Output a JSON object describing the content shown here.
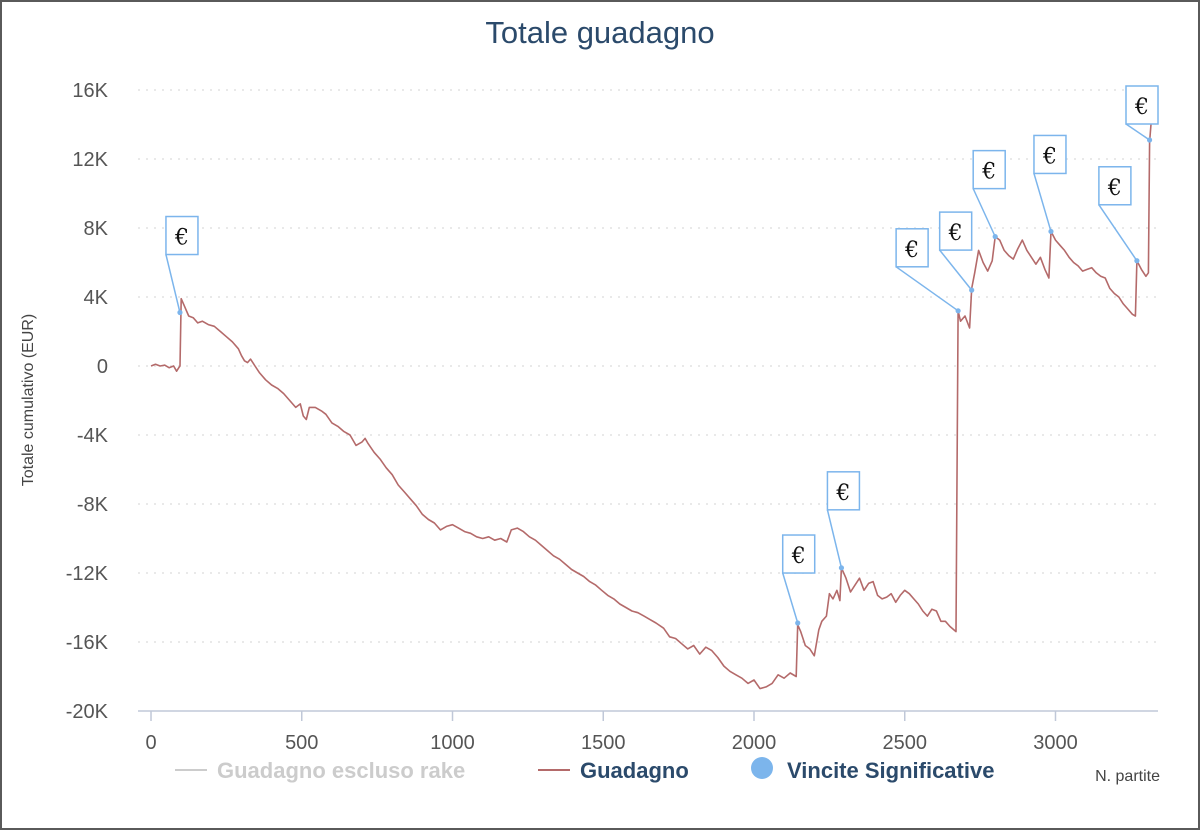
{
  "chart_data": {
    "type": "line",
    "title": "Totale guadagno",
    "xlabel": "N. partite",
    "ylabel": "Totale cumulativo (EUR)",
    "xlim": [
      -10,
      3340
    ],
    "ylim": [
      -20000,
      16000
    ],
    "x_ticks": [
      {
        "value": 0,
        "label": "0"
      },
      {
        "value": 500,
        "label": "500"
      },
      {
        "value": 1000,
        "label": "1000"
      },
      {
        "value": 1500,
        "label": "1500"
      },
      {
        "value": 2000,
        "label": "2000"
      },
      {
        "value": 2500,
        "label": "2500"
      },
      {
        "value": 3000,
        "label": "3000"
      }
    ],
    "y_ticks": [
      {
        "value": 16000,
        "label": "16K"
      },
      {
        "value": 12000,
        "label": "12K"
      },
      {
        "value": 8000,
        "label": "8K"
      },
      {
        "value": 4000,
        "label": "4K"
      },
      {
        "value": 0,
        "label": "0"
      },
      {
        "value": -4000,
        "label": "-4K"
      },
      {
        "value": -8000,
        "label": "-8K"
      },
      {
        "value": -12000,
        "label": "-12K"
      },
      {
        "value": -16000,
        "label": "-16K"
      },
      {
        "value": -20000,
        "label": "-20K"
      }
    ],
    "grid": "horizontal-dotted",
    "legend_position": "bottom",
    "series": [
      {
        "name": "Guadagno escluso rake",
        "color": "#cccccc",
        "visible": false,
        "points": []
      },
      {
        "name": "Guadagno",
        "color": "#b46a6a",
        "points": [
          [
            0,
            0
          ],
          [
            15,
            100
          ],
          [
            30,
            0
          ],
          [
            45,
            50
          ],
          [
            60,
            -100
          ],
          [
            75,
            0
          ],
          [
            85,
            -300
          ],
          [
            92,
            -100
          ],
          [
            96,
            0
          ],
          [
            100,
            3900
          ],
          [
            110,
            3500
          ],
          [
            125,
            2900
          ],
          [
            140,
            2800
          ],
          [
            155,
            2500
          ],
          [
            170,
            2600
          ],
          [
            190,
            2400
          ],
          [
            210,
            2300
          ],
          [
            230,
            2000
          ],
          [
            250,
            1700
          ],
          [
            270,
            1400
          ],
          [
            290,
            1000
          ],
          [
            300,
            600
          ],
          [
            310,
            300
          ],
          [
            320,
            200
          ],
          [
            330,
            400
          ],
          [
            345,
            0
          ],
          [
            360,
            -400
          ],
          [
            380,
            -800
          ],
          [
            400,
            -1100
          ],
          [
            420,
            -1300
          ],
          [
            440,
            -1600
          ],
          [
            460,
            -2000
          ],
          [
            480,
            -2400
          ],
          [
            495,
            -2200
          ],
          [
            505,
            -2900
          ],
          [
            515,
            -3100
          ],
          [
            525,
            -2400
          ],
          [
            545,
            -2400
          ],
          [
            565,
            -2600
          ],
          [
            580,
            -2800
          ],
          [
            600,
            -3300
          ],
          [
            620,
            -3500
          ],
          [
            640,
            -3800
          ],
          [
            660,
            -4000
          ],
          [
            680,
            -4600
          ],
          [
            700,
            -4400
          ],
          [
            710,
            -4200
          ],
          [
            720,
            -4500
          ],
          [
            740,
            -5000
          ],
          [
            760,
            -5400
          ],
          [
            780,
            -5900
          ],
          [
            800,
            -6300
          ],
          [
            820,
            -6900
          ],
          [
            840,
            -7300
          ],
          [
            860,
            -7700
          ],
          [
            880,
            -8100
          ],
          [
            900,
            -8600
          ],
          [
            920,
            -8900
          ],
          [
            940,
            -9100
          ],
          [
            960,
            -9500
          ],
          [
            980,
            -9300
          ],
          [
            1000,
            -9200
          ],
          [
            1020,
            -9400
          ],
          [
            1040,
            -9600
          ],
          [
            1060,
            -9700
          ],
          [
            1080,
            -9900
          ],
          [
            1100,
            -10000
          ],
          [
            1120,
            -9900
          ],
          [
            1140,
            -10100
          ],
          [
            1160,
            -10000
          ],
          [
            1180,
            -10200
          ],
          [
            1195,
            -9500
          ],
          [
            1215,
            -9400
          ],
          [
            1235,
            -9600
          ],
          [
            1255,
            -9900
          ],
          [
            1275,
            -10100
          ],
          [
            1295,
            -10400
          ],
          [
            1315,
            -10700
          ],
          [
            1335,
            -11000
          ],
          [
            1355,
            -11200
          ],
          [
            1375,
            -11500
          ],
          [
            1395,
            -11800
          ],
          [
            1415,
            -12000
          ],
          [
            1435,
            -12200
          ],
          [
            1455,
            -12500
          ],
          [
            1475,
            -12700
          ],
          [
            1495,
            -13000
          ],
          [
            1515,
            -13300
          ],
          [
            1535,
            -13500
          ],
          [
            1555,
            -13800
          ],
          [
            1575,
            -14000
          ],
          [
            1595,
            -14200
          ],
          [
            1615,
            -14300
          ],
          [
            1635,
            -14500
          ],
          [
            1655,
            -14700
          ],
          [
            1675,
            -14900
          ],
          [
            1700,
            -15200
          ],
          [
            1720,
            -15700
          ],
          [
            1740,
            -15800
          ],
          [
            1760,
            -16100
          ],
          [
            1780,
            -16400
          ],
          [
            1800,
            -16200
          ],
          [
            1820,
            -16700
          ],
          [
            1840,
            -16300
          ],
          [
            1860,
            -16500
          ],
          [
            1880,
            -16900
          ],
          [
            1900,
            -17400
          ],
          [
            1920,
            -17700
          ],
          [
            1940,
            -17900
          ],
          [
            1960,
            -18100
          ],
          [
            1980,
            -18400
          ],
          [
            2000,
            -18200
          ],
          [
            2020,
            -18700
          ],
          [
            2040,
            -18600
          ],
          [
            2060,
            -18400
          ],
          [
            2080,
            -17900
          ],
          [
            2100,
            -18100
          ],
          [
            2120,
            -17800
          ],
          [
            2140,
            -18000
          ],
          [
            2145,
            -15000
          ],
          [
            2155,
            -15400
          ],
          [
            2170,
            -16200
          ],
          [
            2185,
            -16400
          ],
          [
            2200,
            -16800
          ],
          [
            2215,
            -15300
          ],
          [
            2225,
            -14800
          ],
          [
            2240,
            -14500
          ],
          [
            2250,
            -13200
          ],
          [
            2262,
            -13500
          ],
          [
            2275,
            -13000
          ],
          [
            2285,
            -13600
          ],
          [
            2290,
            -11700
          ],
          [
            2305,
            -12300
          ],
          [
            2320,
            -13100
          ],
          [
            2335,
            -12700
          ],
          [
            2350,
            -12300
          ],
          [
            2365,
            -13000
          ],
          [
            2380,
            -12600
          ],
          [
            2395,
            -12500
          ],
          [
            2410,
            -13300
          ],
          [
            2425,
            -13500
          ],
          [
            2440,
            -13400
          ],
          [
            2455,
            -13200
          ],
          [
            2470,
            -13700
          ],
          [
            2485,
            -13300
          ],
          [
            2500,
            -13000
          ],
          [
            2515,
            -13200
          ],
          [
            2530,
            -13500
          ],
          [
            2545,
            -13800
          ],
          [
            2560,
            -14200
          ],
          [
            2575,
            -14500
          ],
          [
            2590,
            -14100
          ],
          [
            2605,
            -14200
          ],
          [
            2620,
            -14800
          ],
          [
            2635,
            -14800
          ],
          [
            2650,
            -15100
          ],
          [
            2670,
            -15400
          ],
          [
            2677,
            3200
          ],
          [
            2685,
            2600
          ],
          [
            2700,
            2900
          ],
          [
            2715,
            2200
          ],
          [
            2722,
            4500
          ],
          [
            2732,
            5400
          ],
          [
            2745,
            6700
          ],
          [
            2760,
            6000
          ],
          [
            2775,
            5500
          ],
          [
            2790,
            6100
          ],
          [
            2800,
            7500
          ],
          [
            2815,
            7300
          ],
          [
            2830,
            6700
          ],
          [
            2845,
            6400
          ],
          [
            2860,
            6200
          ],
          [
            2875,
            6800
          ],
          [
            2890,
            7300
          ],
          [
            2905,
            6700
          ],
          [
            2920,
            6300
          ],
          [
            2935,
            5900
          ],
          [
            2950,
            6300
          ],
          [
            2965,
            5600
          ],
          [
            2978,
            5100
          ],
          [
            2985,
            7800
          ],
          [
            3000,
            7300
          ],
          [
            3015,
            7000
          ],
          [
            3030,
            6700
          ],
          [
            3045,
            6300
          ],
          [
            3060,
            6000
          ],
          [
            3075,
            5800
          ],
          [
            3090,
            5500
          ],
          [
            3105,
            5600
          ],
          [
            3120,
            5700
          ],
          [
            3135,
            5400
          ],
          [
            3150,
            5200
          ],
          [
            3165,
            5100
          ],
          [
            3180,
            4500
          ],
          [
            3195,
            4200
          ],
          [
            3210,
            4000
          ],
          [
            3225,
            3600
          ],
          [
            3240,
            3300
          ],
          [
            3255,
            3000
          ],
          [
            3265,
            2900
          ],
          [
            3270,
            6100
          ],
          [
            3285,
            5600
          ],
          [
            3300,
            5200
          ],
          [
            3308,
            5400
          ],
          [
            3312,
            13000
          ],
          [
            3318,
            14300
          ]
        ]
      },
      {
        "name": "Vincite Significative",
        "color": "#7cb5ec",
        "type": "flags",
        "points": [
          {
            "x": 96,
            "y": 3100,
            "label": "€"
          },
          {
            "x": 2145,
            "y": -14900,
            "label": "€"
          },
          {
            "x": 2290,
            "y": -11700,
            "label": "€"
          },
          {
            "x": 2677,
            "y": 3200,
            "label": "€"
          },
          {
            "x": 2722,
            "y": 4400,
            "label": "€"
          },
          {
            "x": 2800,
            "y": 7500,
            "label": "€"
          },
          {
            "x": 2985,
            "y": 7800,
            "label": "€"
          },
          {
            "x": 3270,
            "y": 6100,
            "label": "€"
          },
          {
            "x": 3312,
            "y": 13100,
            "label": "€"
          }
        ]
      }
    ]
  }
}
